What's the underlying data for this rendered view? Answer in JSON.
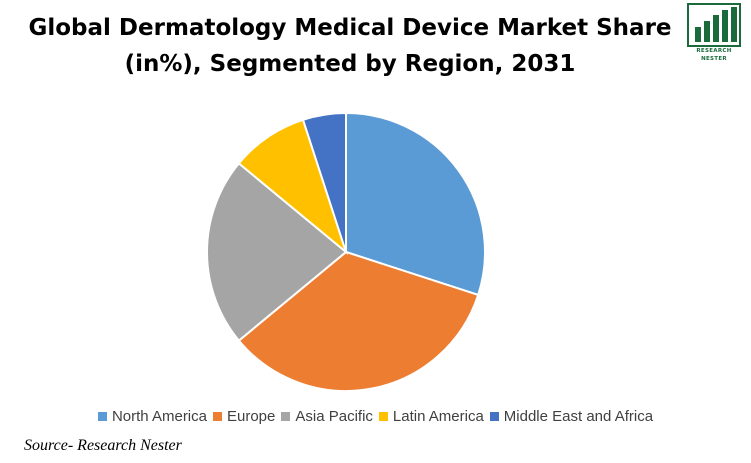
{
  "title_lines": [
    "Global Dermatology Medical Device Market Share",
    "(in%), Segmented by Region, 2031"
  ],
  "logo": {
    "icon": "bar-chart-logo-icon",
    "line1": "RESEARCH",
    "line2": "NESTER",
    "color": "#1a6a3c"
  },
  "chart_data": {
    "type": "pie",
    "title": "Global Dermatology Medical Device Market Share (in%), Segmented by Region, 2031",
    "start_angle_deg": 0,
    "direction": "clockwise",
    "legend_position": "bottom",
    "slices": [
      {
        "label": "North America",
        "value": 30,
        "color": "#5b9bd5"
      },
      {
        "label": "Europe",
        "value": 34,
        "color": "#ed7d31"
      },
      {
        "label": "Asia Pacific",
        "value": 22,
        "color": "#a5a5a5"
      },
      {
        "label": "Latin America",
        "value": 9,
        "color": "#ffc000"
      },
      {
        "label": "Middle East and Africa",
        "value": 5,
        "color": "#4472c4"
      }
    ]
  },
  "source": "Source- Research Nester"
}
